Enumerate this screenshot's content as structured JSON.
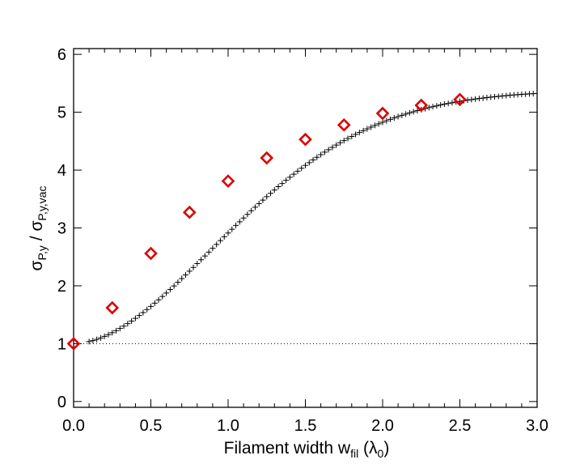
{
  "chart_data": {
    "type": "scatter",
    "xlabel": {
      "main": "Filament width w",
      "sub": "fil",
      "unit_open": " (λ",
      "unit_sub": "0",
      "unit_close": ")"
    },
    "ylabel": {
      "num": "σ",
      "num_sub": "P,y",
      "sep": " / ",
      "den": "σ",
      "den_sub": "P,y,vac"
    },
    "xlim": [
      0,
      3.0
    ],
    "ylim": [
      -0.1,
      6.1
    ],
    "x_ticks": [
      "0.0",
      "0.5",
      "1.0",
      "1.5",
      "2.0",
      "2.5",
      "3.0"
    ],
    "y_ticks": [
      "0",
      "1",
      "2",
      "3",
      "4",
      "5",
      "6"
    ],
    "grid": false,
    "reference_line": {
      "y": 1.0,
      "style": "dotted"
    },
    "series": [
      {
        "marker": "plus",
        "color": "#000000",
        "x_start": 0.1,
        "x_step": 0.025,
        "x_end": 3.0,
        "model": "saturating-curve",
        "params": {
          "y0": 1.0,
          "ymax": 5.38,
          "k": 1.35,
          "p": 1.85
        }
      },
      {
        "marker": "diamond",
        "color": "#dd0000",
        "points": [
          [
            0.0,
            1.0
          ],
          [
            0.25,
            1.62
          ],
          [
            0.5,
            2.56
          ],
          [
            0.75,
            3.27
          ],
          [
            1.0,
            3.81
          ],
          [
            1.25,
            4.21
          ],
          [
            1.5,
            4.53
          ],
          [
            1.75,
            4.78
          ],
          [
            2.0,
            4.98
          ],
          [
            2.25,
            5.12
          ],
          [
            2.5,
            5.22
          ]
        ]
      }
    ]
  }
}
